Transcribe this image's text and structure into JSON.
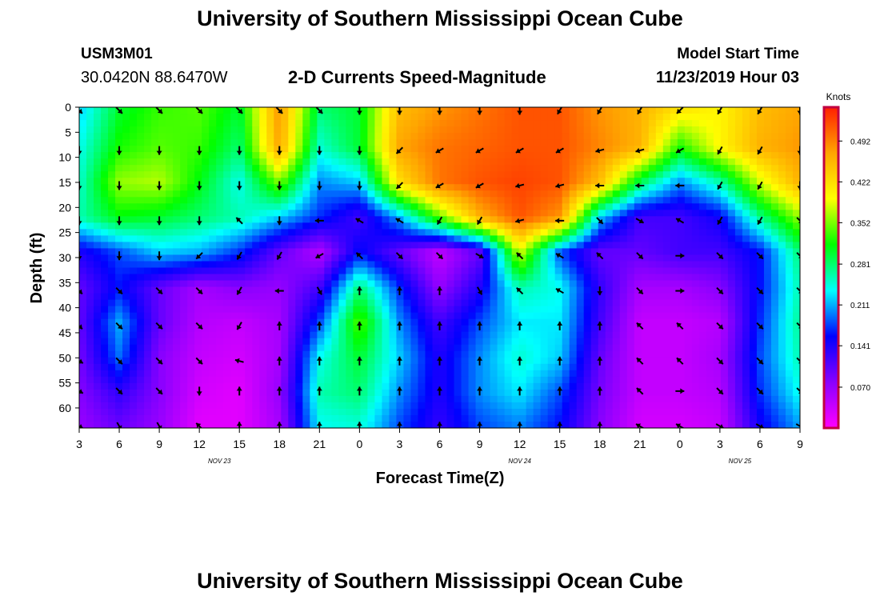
{
  "page": {
    "title_top": "University of Southern Mississippi Ocean Cube",
    "title_bottom": "University of Southern Mississippi Ocean Cube",
    "station_id": "USM3M01",
    "station_coords": "30.0420N 88.6470W",
    "plot_title": "2-D Currents Speed-Magnitude",
    "model_start_label": "Model Start Time",
    "model_start_value": "11/23/2019 Hour 03"
  },
  "colors": {
    "colormap": [
      "#ff00ff",
      "#8a00ff",
      "#0000ff",
      "#00ffff",
      "#00ff00",
      "#ffff00",
      "#ffa500",
      "#ff2000"
    ],
    "arrow": "#000000",
    "colorbar_border": "#c00040"
  },
  "chart_data": {
    "type": "heatmap",
    "xlabel": "Forecast Time(Z)",
    "ylabel": "Depth (ft)",
    "x_tick_labels": [
      "3",
      "6",
      "9",
      "12",
      "15",
      "18",
      "21",
      "0",
      "3",
      "6",
      "9",
      "12",
      "15",
      "18",
      "21",
      "0",
      "3",
      "6",
      "9"
    ],
    "date_labels": [
      {
        "text": "NOV 23",
        "at_tick_index": 3.5
      },
      {
        "text": "NOV 24",
        "at_tick_index": 11
      },
      {
        "text": "NOV 25",
        "at_tick_index": 16.5
      }
    ],
    "y_tick_labels": [
      "0",
      "5",
      "10",
      "15",
      "20",
      "25",
      "30",
      "35",
      "40",
      "45",
      "50",
      "55",
      "60"
    ],
    "ylim": [
      0,
      64
    ],
    "colorbar": {
      "unit": "Knots",
      "min": 0,
      "max": 0.55,
      "tick_values": [
        0.492,
        0.422,
        0.352,
        0.281,
        0.211,
        0.141,
        0.07
      ],
      "tick_labels": [
        "0.492",
        "0.422",
        "0.352",
        "0.281",
        "0.211",
        "0.141",
        "0.070"
      ]
    },
    "grid_columns_hours_from_start": [
      0,
      3,
      6,
      9,
      12,
      15,
      18,
      21,
      24,
      27,
      30,
      33,
      36,
      39,
      42,
      45,
      48,
      51,
      54
    ],
    "grid_rows_depth_ft": [
      0,
      8,
      15,
      22,
      29,
      36,
      43,
      50,
      57,
      63
    ],
    "speed_knots": [
      [
        0.22,
        0.3,
        0.33,
        0.34,
        0.3,
        0.48,
        0.28,
        0.3,
        0.45,
        0.48,
        0.5,
        0.52,
        0.52,
        0.48,
        0.46,
        0.42,
        0.4,
        0.45,
        0.47
      ],
      [
        0.24,
        0.32,
        0.34,
        0.33,
        0.28,
        0.47,
        0.25,
        0.3,
        0.47,
        0.5,
        0.51,
        0.52,
        0.52,
        0.49,
        0.46,
        0.32,
        0.4,
        0.46,
        0.48
      ],
      [
        0.25,
        0.36,
        0.37,
        0.31,
        0.24,
        0.35,
        0.2,
        0.22,
        0.42,
        0.5,
        0.52,
        0.53,
        0.52,
        0.45,
        0.29,
        0.2,
        0.26,
        0.38,
        0.46
      ],
      [
        0.26,
        0.31,
        0.3,
        0.28,
        0.26,
        0.22,
        0.17,
        0.12,
        0.21,
        0.34,
        0.46,
        0.52,
        0.48,
        0.22,
        0.12,
        0.12,
        0.15,
        0.27,
        0.36
      ],
      [
        0.14,
        0.18,
        0.22,
        0.21,
        0.17,
        0.1,
        0.05,
        0.16,
        0.1,
        0.04,
        0.1,
        0.38,
        0.18,
        0.1,
        0.1,
        0.12,
        0.12,
        0.16,
        0.28
      ],
      [
        0.1,
        0.16,
        0.1,
        0.06,
        0.08,
        0.07,
        0.12,
        0.28,
        0.17,
        0.07,
        0.14,
        0.26,
        0.24,
        0.13,
        0.06,
        0.06,
        0.08,
        0.16,
        0.26
      ],
      [
        0.1,
        0.21,
        0.1,
        0.05,
        0.04,
        0.06,
        0.18,
        0.34,
        0.2,
        0.12,
        0.18,
        0.23,
        0.23,
        0.12,
        0.04,
        0.04,
        0.05,
        0.17,
        0.27
      ],
      [
        0.09,
        0.19,
        0.08,
        0.04,
        0.03,
        0.06,
        0.24,
        0.3,
        0.22,
        0.14,
        0.2,
        0.25,
        0.22,
        0.1,
        0.04,
        0.04,
        0.06,
        0.18,
        0.26
      ],
      [
        0.08,
        0.13,
        0.08,
        0.03,
        0.02,
        0.07,
        0.26,
        0.28,
        0.2,
        0.14,
        0.2,
        0.23,
        0.18,
        0.09,
        0.04,
        0.04,
        0.05,
        0.17,
        0.24
      ],
      [
        0.07,
        0.1,
        0.07,
        0.02,
        0.02,
        0.06,
        0.24,
        0.25,
        0.18,
        0.13,
        0.18,
        0.2,
        0.16,
        0.08,
        0.03,
        0.03,
        0.04,
        0.15,
        0.21
      ]
    ],
    "arrow_columns_hours_from_start": [
      0,
      3,
      6,
      9,
      12,
      15,
      18,
      21,
      24,
      27,
      30,
      33,
      36,
      39,
      42,
      45,
      48,
      51,
      54
    ],
    "arrow_rows_depth_ft": [
      0,
      8,
      15,
      22,
      29,
      36,
      43,
      50,
      56,
      63
    ],
    "arrow_direction_deg": [
      [
        135,
        135,
        135,
        135,
        135,
        135,
        135,
        180,
        180,
        180,
        180,
        180,
        210,
        210,
        210,
        225,
        210,
        210,
        180
      ],
      [
        180,
        180,
        180,
        180,
        180,
        180,
        180,
        180,
        225,
        240,
        240,
        240,
        240,
        255,
        255,
        240,
        210,
        210,
        180
      ],
      [
        180,
        180,
        180,
        180,
        180,
        180,
        180,
        180,
        225,
        240,
        240,
        255,
        255,
        270,
        270,
        270,
        210,
        210,
        180
      ],
      [
        180,
        180,
        180,
        180,
        315,
        180,
        270,
        300,
        300,
        210,
        210,
        255,
        270,
        135,
        120,
        300,
        210,
        210,
        135
      ],
      [
        180,
        180,
        180,
        225,
        210,
        210,
        240,
        315,
        135,
        135,
        120,
        315,
        300,
        315,
        135,
        90,
        135,
        135,
        135
      ],
      [
        135,
        135,
        135,
        135,
        210,
        270,
        150,
        0,
        0,
        0,
        150,
        315,
        300,
        180,
        135,
        90,
        135,
        135,
        135
      ],
      [
        135,
        135,
        135,
        135,
        210,
        0,
        0,
        0,
        0,
        0,
        0,
        0,
        0,
        0,
        315,
        315,
        135,
        135,
        135
      ],
      [
        120,
        135,
        135,
        135,
        285,
        0,
        0,
        0,
        0,
        0,
        0,
        0,
        0,
        0,
        315,
        315,
        135,
        135,
        135
      ],
      [
        120,
        135,
        135,
        180,
        0,
        0,
        0,
        0,
        0,
        0,
        0,
        0,
        0,
        0,
        315,
        90,
        135,
        135,
        135
      ],
      [
        120,
        150,
        150,
        315,
        0,
        0,
        0,
        0,
        0,
        0,
        0,
        0,
        0,
        0,
        300,
        300,
        120,
        120,
        120
      ]
    ]
  }
}
